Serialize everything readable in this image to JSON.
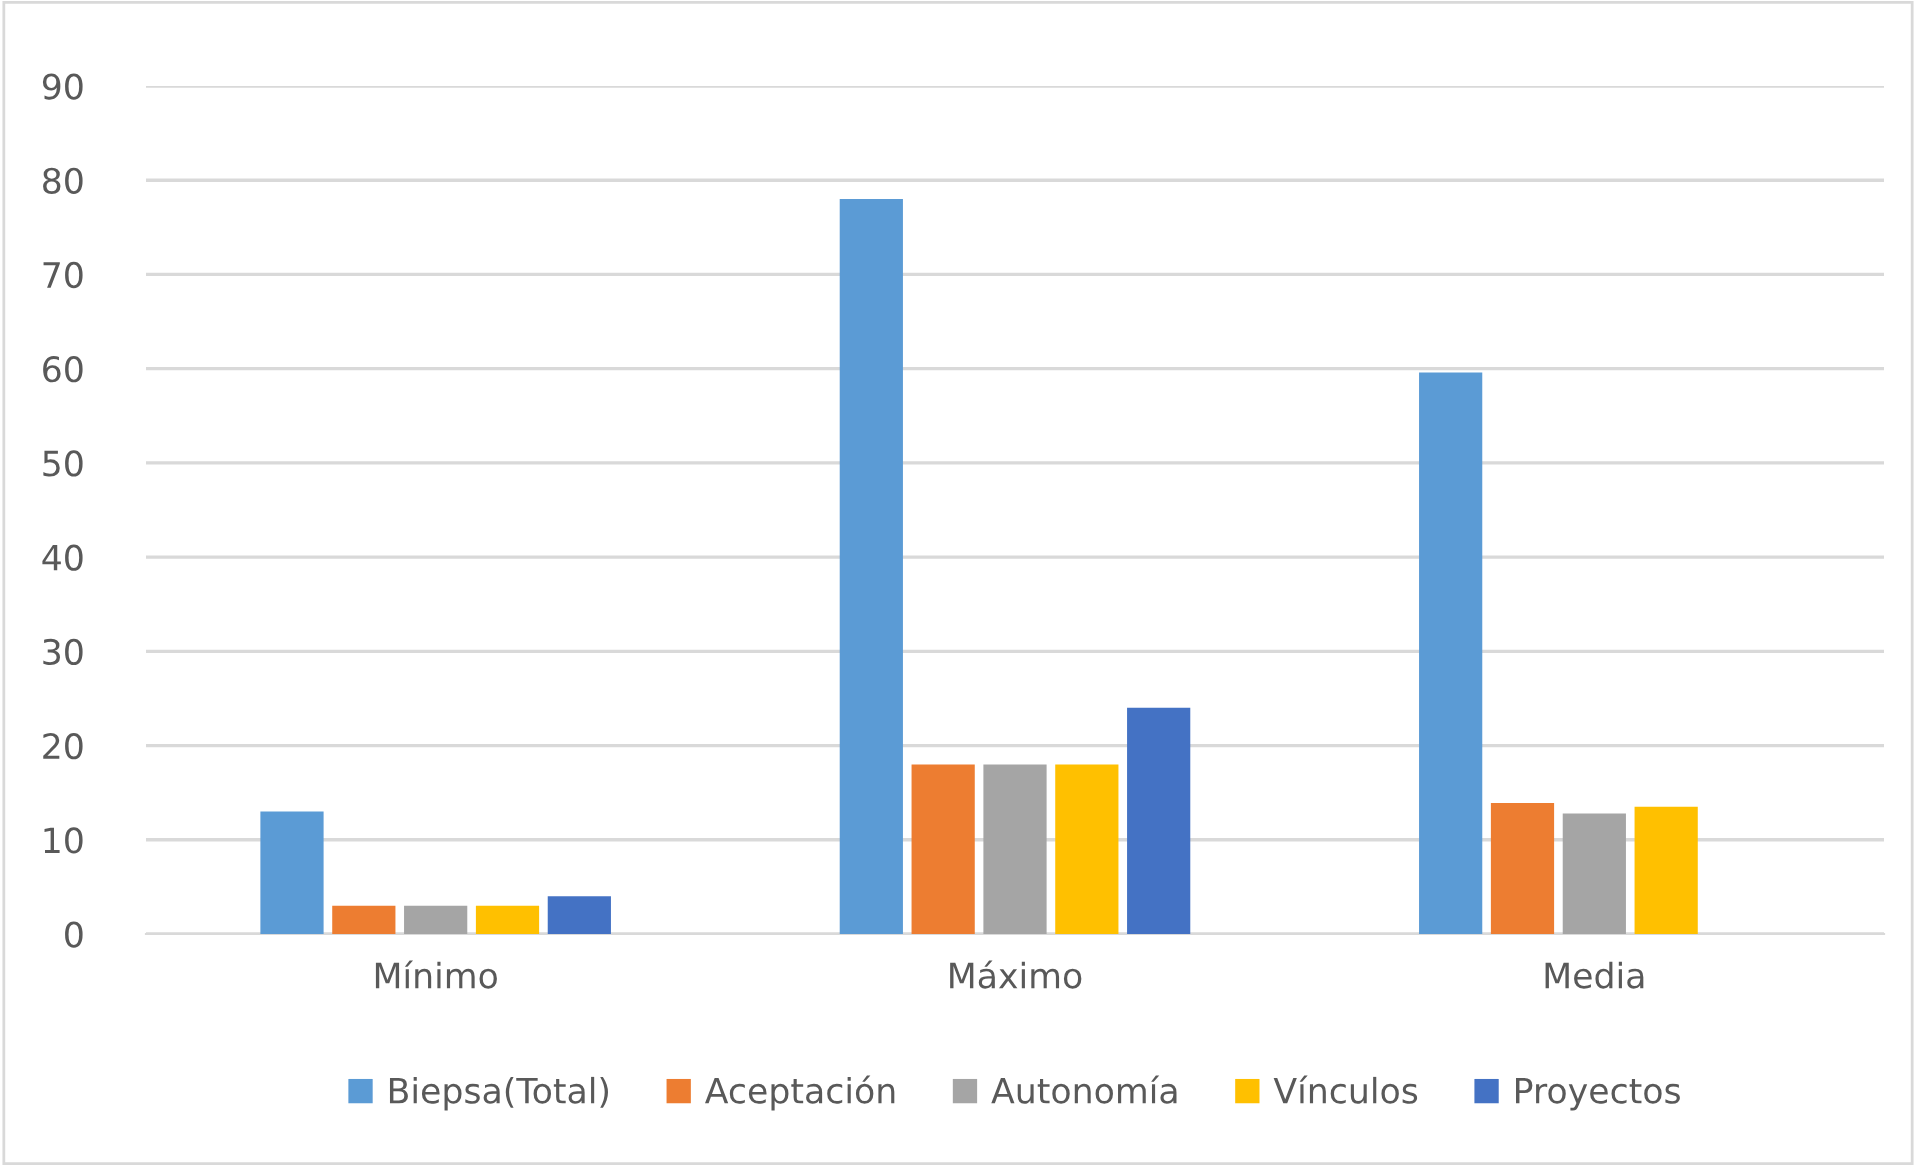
{
  "chart_data": {
    "type": "bar",
    "categories": [
      "Mínimo",
      "Máximo",
      "Media"
    ],
    "series": [
      {
        "name": "Biepsa(Total)",
        "color": "#5b9bd5",
        "values": [
          13,
          78,
          59.6
        ]
      },
      {
        "name": "Aceptación",
        "color": "#ed7d31",
        "values": [
          3,
          18,
          13.9
        ]
      },
      {
        "name": "Autonomía",
        "color": "#a5a5a5",
        "values": [
          3,
          18,
          12.8
        ]
      },
      {
        "name": "Vínculos",
        "color": "#ffc000",
        "values": [
          3,
          18,
          13.5
        ]
      },
      {
        "name": "Proyectos",
        "color": "#4472c4",
        "values": [
          4,
          24,
          null
        ]
      }
    ],
    "ylim": [
      0,
      90
    ],
    "yticks": [
      0,
      10,
      20,
      30,
      40,
      50,
      60,
      70,
      80,
      90
    ],
    "grid": "y",
    "legend": "bottom"
  }
}
